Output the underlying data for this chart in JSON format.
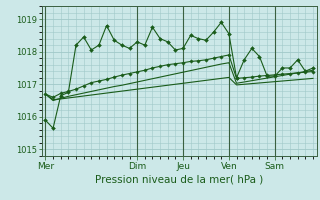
{
  "bg_color": "#cce8e8",
  "grid_color": "#a0c8c8",
  "line_color": "#1a5c1a",
  "marker_color": "#1a5c1a",
  "xlabel": "Pression niveau de la mer( hPa )",
  "ylim": [
    1014.8,
    1019.4
  ],
  "yticks": [
    1015,
    1016,
    1017,
    1018,
    1019
  ],
  "x_day_labels": [
    "Mer",
    "Dim",
    "Jeu",
    "Ven",
    "Sam"
  ],
  "x_day_positions": [
    0,
    12,
    18,
    24,
    30
  ],
  "num_points": 36,
  "series1": [
    1015.9,
    1015.65,
    1016.65,
    1016.75,
    1018.2,
    1018.45,
    1018.05,
    1018.2,
    1018.8,
    1018.35,
    1018.2,
    1018.1,
    1018.3,
    1018.2,
    1018.75,
    1018.4,
    1018.3,
    1018.05,
    1018.1,
    1018.5,
    1018.4,
    1018.35,
    1018.6,
    1018.9,
    1018.55,
    1017.2,
    1017.75,
    1018.1,
    1017.85,
    1017.25,
    1017.25,
    1017.5,
    1017.5,
    1017.75,
    1017.4,
    1017.5
  ],
  "series2": [
    1016.7,
    1016.6,
    1016.72,
    1016.78,
    1016.85,
    1016.95,
    1017.05,
    1017.1,
    1017.15,
    1017.22,
    1017.28,
    1017.33,
    1017.38,
    1017.43,
    1017.5,
    1017.55,
    1017.6,
    1017.63,
    1017.66,
    1017.7,
    1017.72,
    1017.75,
    1017.8,
    1017.85,
    1017.9,
    1017.18,
    1017.2,
    1017.22,
    1017.25,
    1017.27,
    1017.29,
    1017.31,
    1017.33,
    1017.35,
    1017.37,
    1017.39
  ],
  "series3": [
    1016.7,
    1016.5,
    1016.57,
    1016.63,
    1016.68,
    1016.73,
    1016.78,
    1016.83,
    1016.88,
    1016.93,
    1016.97,
    1017.02,
    1017.07,
    1017.12,
    1017.17,
    1017.22,
    1017.27,
    1017.32,
    1017.37,
    1017.42,
    1017.47,
    1017.52,
    1017.57,
    1017.62,
    1017.66,
    1017.03,
    1017.07,
    1017.11,
    1017.15,
    1017.19,
    1017.23,
    1017.27,
    1017.31,
    1017.35,
    1017.39,
    1017.43
  ],
  "series4": [
    1016.7,
    1016.53,
    1016.55,
    1016.58,
    1016.61,
    1016.64,
    1016.67,
    1016.7,
    1016.73,
    1016.76,
    1016.79,
    1016.82,
    1016.85,
    1016.88,
    1016.91,
    1016.94,
    1016.97,
    1017.0,
    1017.03,
    1017.06,
    1017.09,
    1017.12,
    1017.15,
    1017.18,
    1017.21,
    1016.98,
    1017.0,
    1017.02,
    1017.04,
    1017.06,
    1017.08,
    1017.1,
    1017.12,
    1017.14,
    1017.16,
    1017.18
  ]
}
